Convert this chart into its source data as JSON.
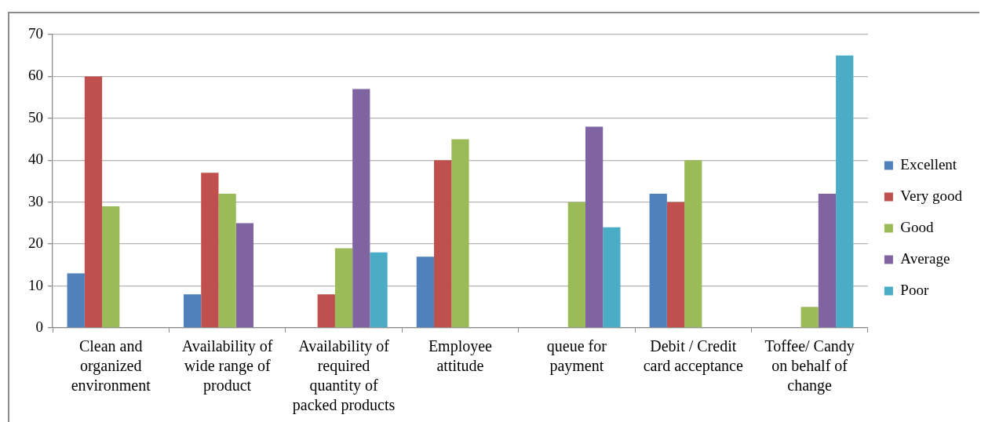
{
  "chart_data": {
    "type": "bar",
    "categories": [
      "Clean and organized environment",
      "Availability of wide range of product",
      "Availability of required quantity of packed products",
      "Employee attitude",
      "queue for payment",
      "Debit / Credit card acceptance",
      "Toffee/ Candy on behalf of change"
    ],
    "series": [
      {
        "name": "Excellent",
        "color": "#4f81bd",
        "values": [
          13,
          8,
          null,
          17,
          null,
          32,
          null
        ]
      },
      {
        "name": "Very good",
        "color": "#c0504d",
        "values": [
          60,
          37,
          8,
          40,
          null,
          30,
          null
        ]
      },
      {
        "name": "Good",
        "color": "#9bbb59",
        "values": [
          29,
          32,
          19,
          45,
          30,
          40,
          5
        ]
      },
      {
        "name": "Average",
        "color": "#8064a2",
        "values": [
          null,
          25,
          57,
          null,
          48,
          null,
          32
        ]
      },
      {
        "name": "Poor",
        "color": "#4bacc6",
        "values": [
          null,
          null,
          18,
          null,
          24,
          null,
          65
        ]
      }
    ],
    "ylim": [
      0,
      70
    ],
    "yticks": [
      0,
      10,
      20,
      30,
      40,
      50,
      60,
      70
    ],
    "grid": "y",
    "legend": "right"
  }
}
